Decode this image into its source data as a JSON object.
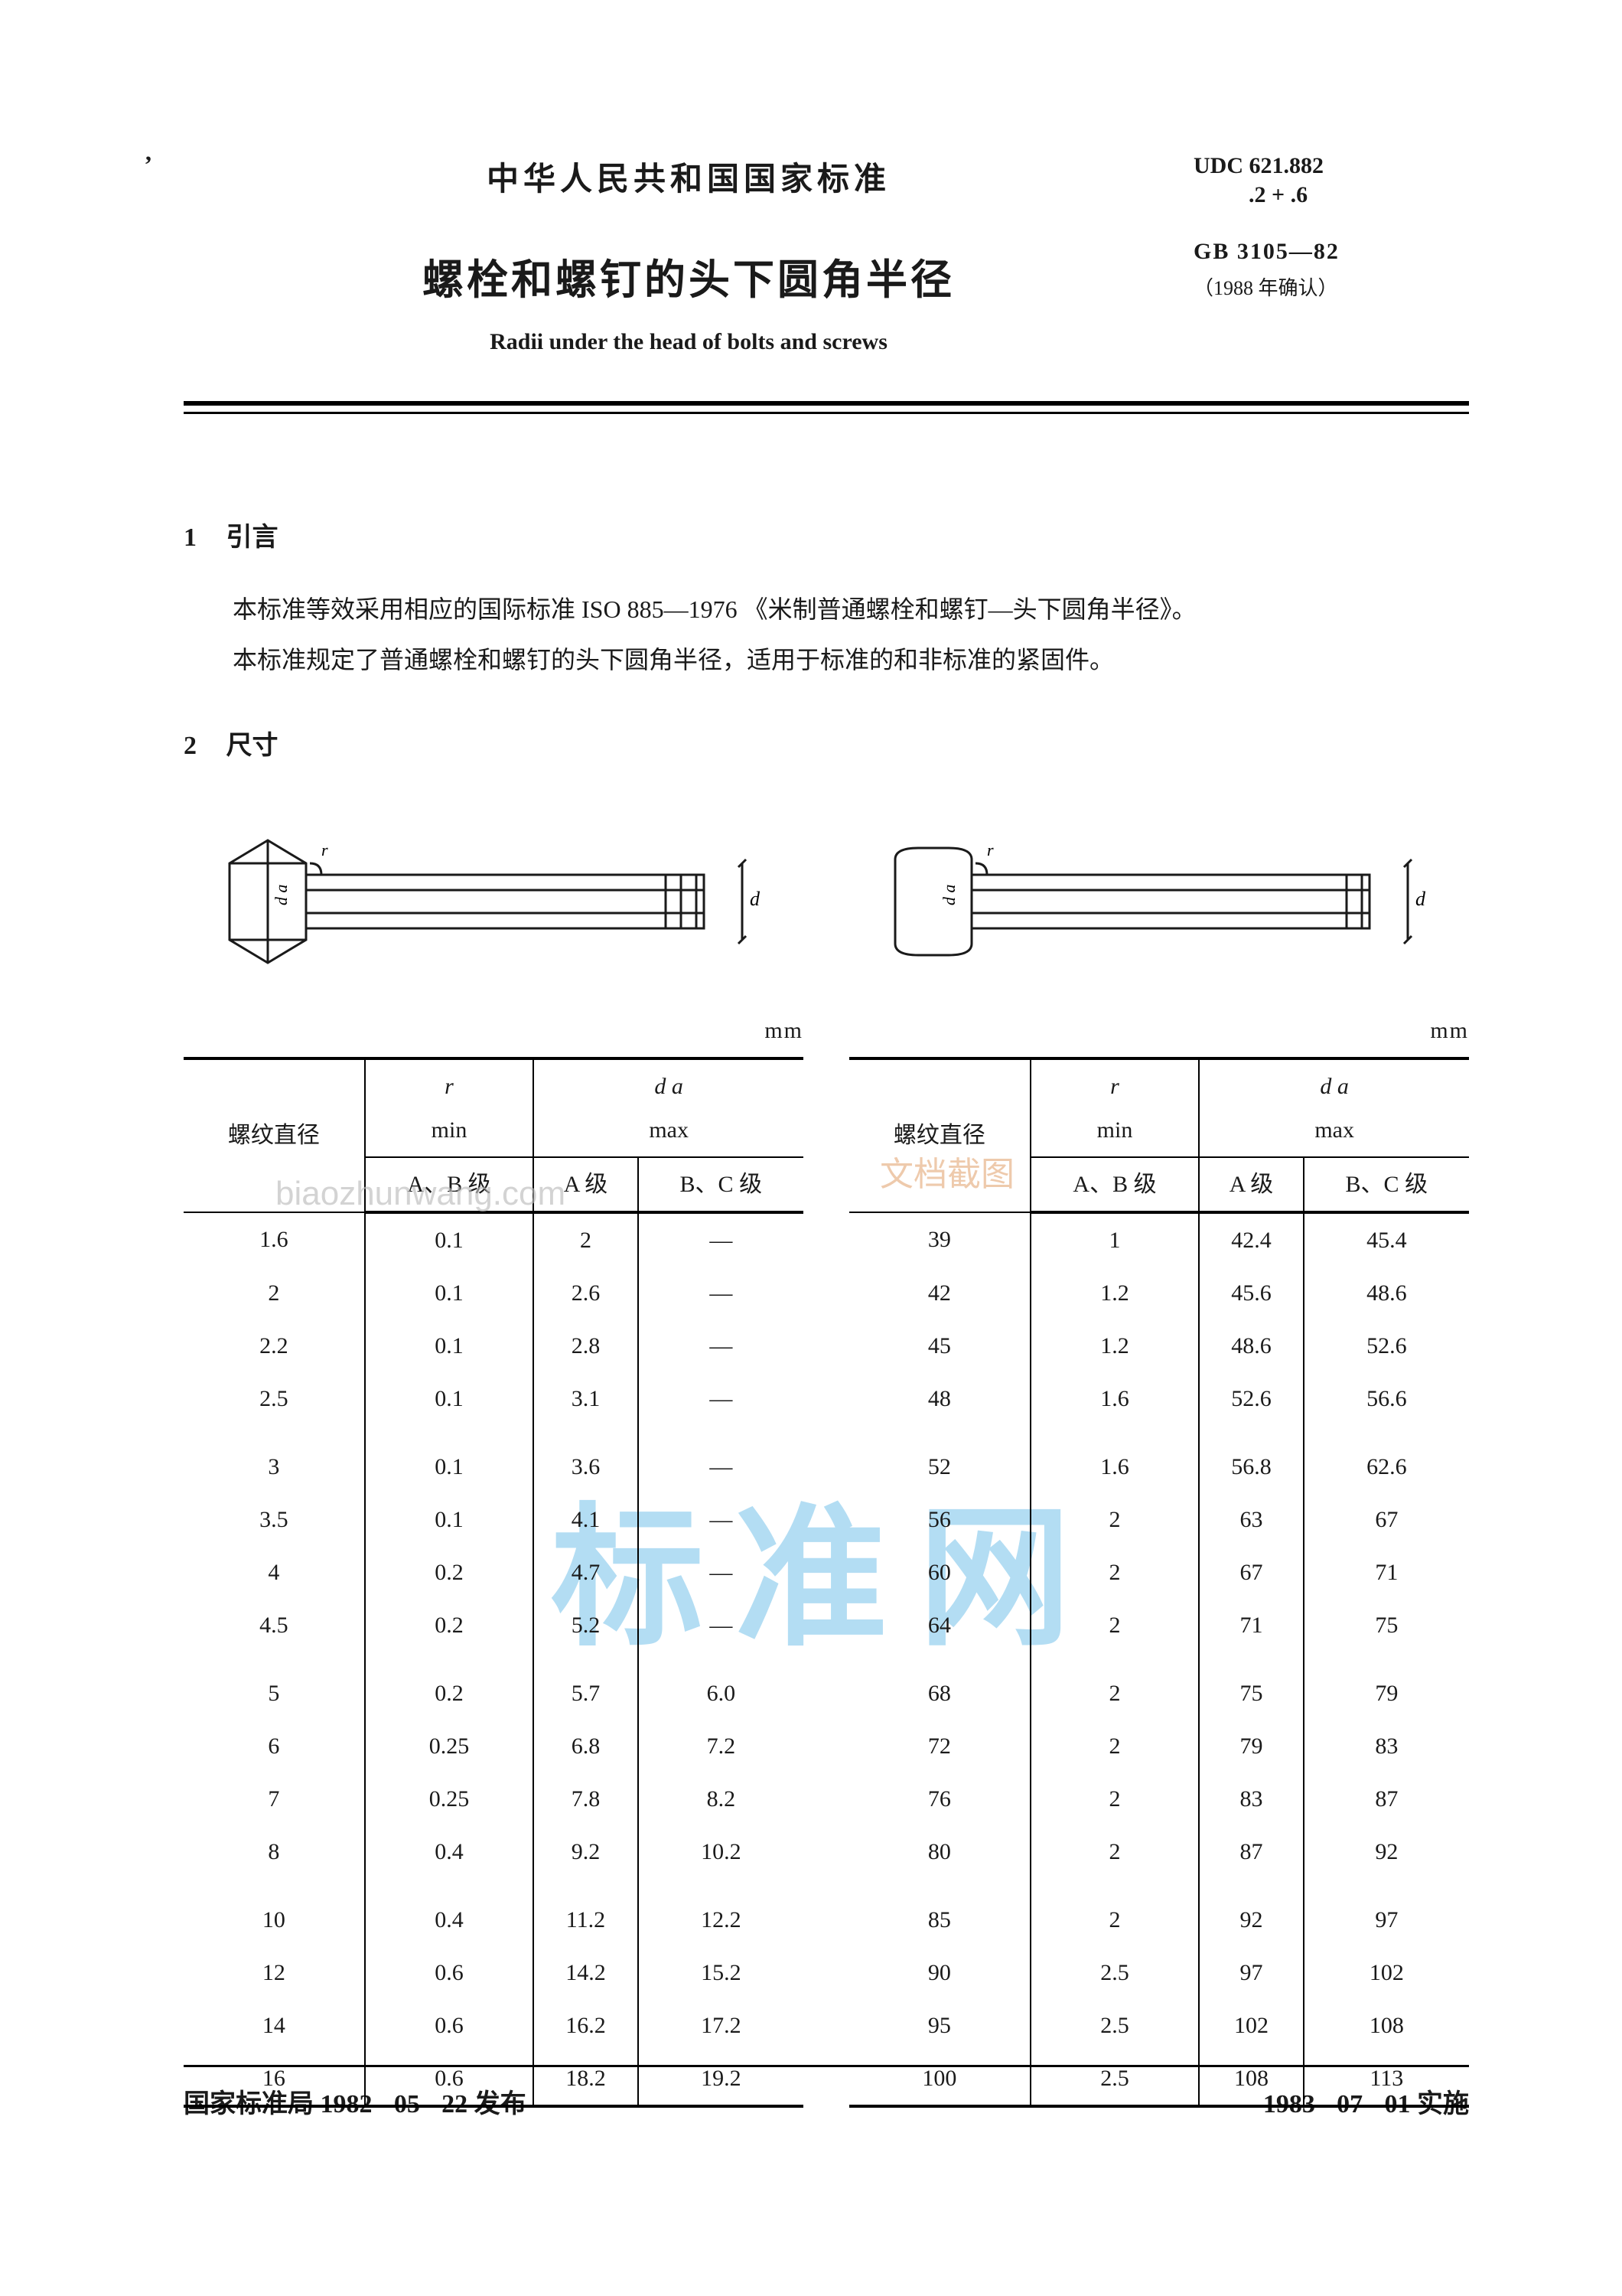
{
  "header": {
    "org": "中华人民共和国国家标准",
    "title": "螺栓和螺钉的头下圆角半径",
    "subtitle_en": "Radii under the head of bolts and screws",
    "udc_line1": "UDC 621.882",
    "udc_line2": ".2 + .6",
    "gb": "GB 3105—82",
    "confirm": "（1988 年确认）"
  },
  "sections": {
    "s1_num": "1",
    "s1_title": "引言",
    "s1_p1": "本标准等效采用相应的国际标准 ISO 885—1976 《米制普通螺栓和螺钉—头下圆角半径》。",
    "s1_p2": "本标准规定了普通螺栓和螺钉的头下圆角半径，适用于标准的和非标准的紧固件。",
    "s2_num": "2",
    "s2_title": "尺寸"
  },
  "table_cols": {
    "col1": "螺纹直径",
    "col2_top": "r",
    "col2_sub": "min",
    "col3_top": "d a",
    "col3_sub": "max",
    "row2_c2": "A、B 级",
    "row2_c3": "A 级",
    "row2_c4": "B、C 级",
    "unit": "mm"
  },
  "left_rows": [
    [
      "1.6",
      "0.1",
      "2",
      "—"
    ],
    [
      "2",
      "0.1",
      "2.6",
      "—"
    ],
    [
      "2.2",
      "0.1",
      "2.8",
      "—"
    ],
    [
      "2.5",
      "0.1",
      "3.1",
      "—"
    ],
    [
      "",
      "",
      "",
      ""
    ],
    [
      "3",
      "0.1",
      "3.6",
      "—"
    ],
    [
      "3.5",
      "0.1",
      "4.1",
      "—"
    ],
    [
      "4",
      "0.2",
      "4.7",
      "—"
    ],
    [
      "4.5",
      "0.2",
      "5.2",
      "—"
    ],
    [
      "",
      "",
      "",
      ""
    ],
    [
      "5",
      "0.2",
      "5.7",
      "6.0"
    ],
    [
      "6",
      "0.25",
      "6.8",
      "7.2"
    ],
    [
      "7",
      "0.25",
      "7.8",
      "8.2"
    ],
    [
      "8",
      "0.4",
      "9.2",
      "10.2"
    ],
    [
      "",
      "",
      "",
      ""
    ],
    [
      "10",
      "0.4",
      "11.2",
      "12.2"
    ],
    [
      "12",
      "0.6",
      "14.2",
      "15.2"
    ],
    [
      "14",
      "0.6",
      "16.2",
      "17.2"
    ],
    [
      "16",
      "0.6",
      "18.2",
      "19.2"
    ]
  ],
  "right_rows": [
    [
      "39",
      "1",
      "42.4",
      "45.4"
    ],
    [
      "42",
      "1.2",
      "45.6",
      "48.6"
    ],
    [
      "45",
      "1.2",
      "48.6",
      "52.6"
    ],
    [
      "48",
      "1.6",
      "52.6",
      "56.6"
    ],
    [
      "",
      "",
      "",
      ""
    ],
    [
      "52",
      "1.6",
      "56.8",
      "62.6"
    ],
    [
      "56",
      "2",
      "63",
      "67"
    ],
    [
      "60",
      "2",
      "67",
      "71"
    ],
    [
      "64",
      "2",
      "71",
      "75"
    ],
    [
      "",
      "",
      "",
      ""
    ],
    [
      "68",
      "2",
      "75",
      "79"
    ],
    [
      "72",
      "2",
      "79",
      "83"
    ],
    [
      "76",
      "2",
      "83",
      "87"
    ],
    [
      "80",
      "2",
      "87",
      "92"
    ],
    [
      "",
      "",
      "",
      ""
    ],
    [
      "85",
      "2",
      "92",
      "97"
    ],
    [
      "90",
      "2.5",
      "97",
      "102"
    ],
    [
      "95",
      "2.5",
      "102",
      "108"
    ],
    [
      "100",
      "2.5",
      "108",
      "113"
    ]
  ],
  "footer": {
    "left": "国家标准局 1982 - 05 - 22 发布",
    "right": "1983 - 07 - 01 实施"
  },
  "watermark": {
    "big": "标准网",
    "small": "biaozhunwang.com",
    "cn": "文档截图"
  },
  "colors": {
    "text": "#1a1a1a",
    "watermark_blue": "#58b4e6",
    "watermark_gray": "#bdbdbd",
    "watermark_orange": "#e8b48a",
    "background": "#ffffff"
  }
}
